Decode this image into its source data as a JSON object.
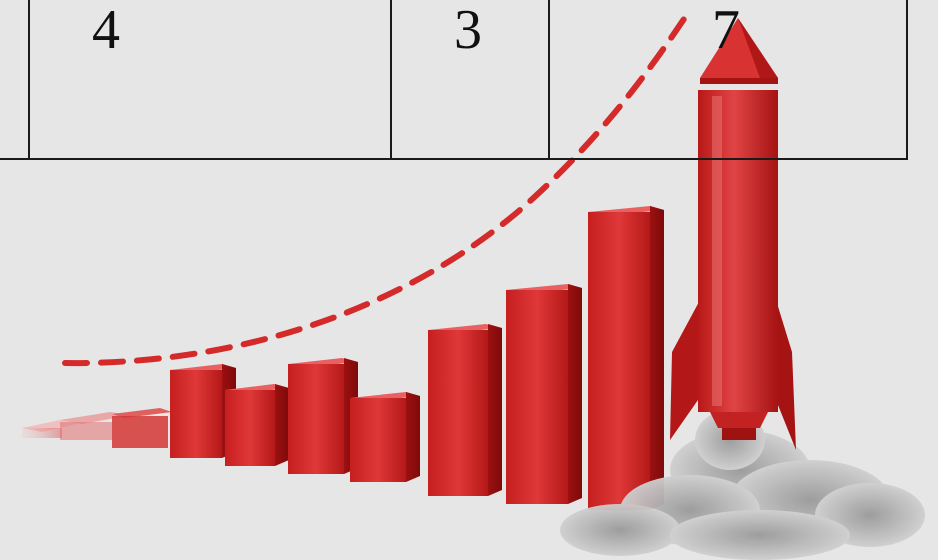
{
  "table": {
    "row": [
      {
        "value": ""
      },
      {
        "value": "4"
      },
      {
        "value": "3"
      },
      {
        "value": "7"
      }
    ]
  },
  "illustration": {
    "subject": "red-bar-chart-with-rocket",
    "bar_color": "#d42a2a",
    "bar_dark": "#a51414",
    "bar_light": "#e96060",
    "trail_color": "#d42a2a",
    "smoke_color": "#a8a8a8",
    "background": "#e6e6e6"
  }
}
